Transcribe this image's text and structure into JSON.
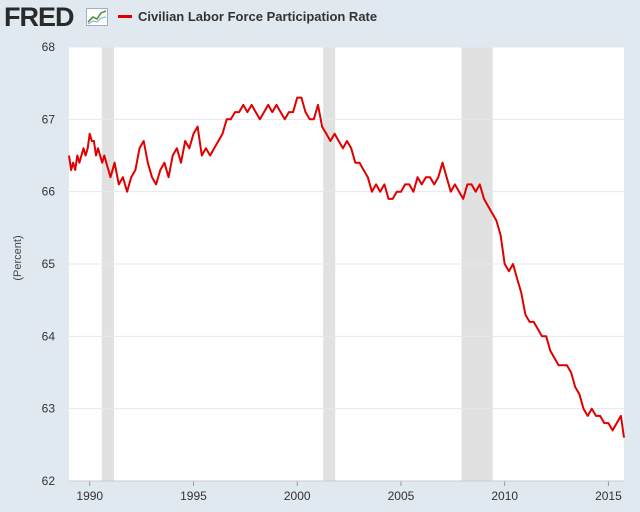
{
  "app": {
    "logo_text": "FRED",
    "logo_icon": "trend-chart-icon"
  },
  "chart_data": {
    "type": "line",
    "title": "",
    "legend": [
      "Civilian Labor Force Participation Rate"
    ],
    "legend_placement": "top-left",
    "xlabel": "",
    "ylabel": "(Percent)",
    "xlim": [
      1989.0,
      2015.75
    ],
    "ylim": [
      62,
      68
    ],
    "yticks": [
      62,
      63,
      64,
      65,
      66,
      67,
      68
    ],
    "xticks": [
      1990,
      1995,
      2000,
      2005,
      2010,
      2015
    ],
    "grid": "horizontal",
    "recessions": [
      [
        1990.58,
        1991.17
      ],
      [
        2001.25,
        2001.83
      ],
      [
        2007.92,
        2009.42
      ]
    ],
    "colors": {
      "line": "#e00000",
      "recession": "#e1e1e1",
      "background": "#e1e9f0",
      "plot": "#ffffff",
      "grid": "#e4e8ee"
    },
    "series": [
      {
        "name": "Civilian Labor Force Participation Rate",
        "x": [
          1989.0,
          1989.1,
          1989.2,
          1989.3,
          1989.4,
          1989.5,
          1989.6,
          1989.7,
          1989.8,
          1989.9,
          1990.0,
          1990.1,
          1990.2,
          1990.3,
          1990.4,
          1990.5,
          1990.6,
          1990.7,
          1990.8,
          1990.9,
          1991.0,
          1991.2,
          1991.4,
          1991.6,
          1991.8,
          1992.0,
          1992.2,
          1992.4,
          1992.6,
          1992.8,
          1993.0,
          1993.2,
          1993.4,
          1993.6,
          1993.8,
          1994.0,
          1994.2,
          1994.4,
          1994.6,
          1994.8,
          1995.0,
          1995.2,
          1995.4,
          1995.6,
          1995.8,
          1996.0,
          1996.2,
          1996.4,
          1996.6,
          1996.8,
          1997.0,
          1997.2,
          1997.4,
          1997.6,
          1997.8,
          1998.0,
          1998.2,
          1998.4,
          1998.6,
          1998.8,
          1999.0,
          1999.2,
          1999.4,
          1999.6,
          1999.8,
          2000.0,
          2000.2,
          2000.4,
          2000.6,
          2000.8,
          2001.0,
          2001.2,
          2001.4,
          2001.6,
          2001.8,
          2002.0,
          2002.2,
          2002.4,
          2002.6,
          2002.8,
          2003.0,
          2003.2,
          2003.4,
          2003.6,
          2003.8,
          2004.0,
          2004.2,
          2004.4,
          2004.6,
          2004.8,
          2005.0,
          2005.2,
          2005.4,
          2005.6,
          2005.8,
          2006.0,
          2006.2,
          2006.4,
          2006.6,
          2006.8,
          2007.0,
          2007.2,
          2007.4,
          2007.6,
          2007.8,
          2008.0,
          2008.2,
          2008.4,
          2008.6,
          2008.8,
          2009.0,
          2009.2,
          2009.4,
          2009.6,
          2009.8,
          2010.0,
          2010.2,
          2010.4,
          2010.6,
          2010.8,
          2011.0,
          2011.2,
          2011.4,
          2011.6,
          2011.8,
          2012.0,
          2012.2,
          2012.4,
          2012.6,
          2012.8,
          2013.0,
          2013.2,
          2013.4,
          2013.6,
          2013.8,
          2014.0,
          2014.2,
          2014.4,
          2014.6,
          2014.8,
          2015.0,
          2015.2,
          2015.4,
          2015.6,
          2015.75
        ],
        "values": [
          66.5,
          66.3,
          66.4,
          66.3,
          66.5,
          66.4,
          66.5,
          66.6,
          66.5,
          66.6,
          66.8,
          66.7,
          66.7,
          66.5,
          66.6,
          66.5,
          66.4,
          66.5,
          66.4,
          66.3,
          66.2,
          66.4,
          66.1,
          66.2,
          66.0,
          66.2,
          66.3,
          66.6,
          66.7,
          66.4,
          66.2,
          66.1,
          66.3,
          66.4,
          66.2,
          66.5,
          66.6,
          66.4,
          66.7,
          66.6,
          66.8,
          66.9,
          66.5,
          66.6,
          66.5,
          66.6,
          66.7,
          66.8,
          67.0,
          67.0,
          67.1,
          67.1,
          67.2,
          67.1,
          67.2,
          67.1,
          67.0,
          67.1,
          67.2,
          67.1,
          67.2,
          67.1,
          67.0,
          67.1,
          67.1,
          67.3,
          67.3,
          67.1,
          67.0,
          67.0,
          67.2,
          66.9,
          66.8,
          66.7,
          66.8,
          66.7,
          66.6,
          66.7,
          66.6,
          66.4,
          66.4,
          66.3,
          66.2,
          66.0,
          66.1,
          66.0,
          66.1,
          65.9,
          65.9,
          66.0,
          66.0,
          66.1,
          66.1,
          66.0,
          66.2,
          66.1,
          66.2,
          66.2,
          66.1,
          66.2,
          66.4,
          66.2,
          66.0,
          66.1,
          66.0,
          65.9,
          66.1,
          66.1,
          66.0,
          66.1,
          65.9,
          65.8,
          65.7,
          65.6,
          65.4,
          65.0,
          64.9,
          65.0,
          64.8,
          64.6,
          64.3,
          64.2,
          64.2,
          64.1,
          64.0,
          64.0,
          63.8,
          63.7,
          63.6,
          63.6,
          63.6,
          63.5,
          63.3,
          63.2,
          63.0,
          62.9,
          63.0,
          62.9,
          62.9,
          62.8,
          62.8,
          62.7,
          62.8,
          62.9,
          62.6
        ]
      }
    ]
  }
}
